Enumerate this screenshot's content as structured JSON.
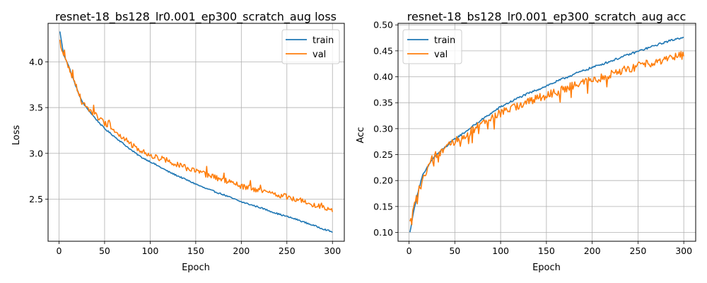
{
  "chart_data": [
    {
      "type": "line",
      "title": "resnet-18_bs128_lr0.001_ep300_scratch_aug loss",
      "xlabel": "Epoch",
      "ylabel": "Loss",
      "xlim": [
        -12,
        313
      ],
      "ylim": [
        2.04,
        4.42
      ],
      "xticks": [
        0,
        50,
        100,
        150,
        200,
        250,
        300
      ],
      "yticks": [
        2.5,
        3.0,
        3.5,
        4.0
      ],
      "ytick_labels": [
        "2.5",
        "3.0",
        "3.5",
        "4.0"
      ],
      "grid": true,
      "legend_position": "top-right",
      "series": [
        {
          "name": "train",
          "color": "#1f77b4",
          "x": [
            1,
            5,
            10,
            15,
            20,
            25,
            30,
            40,
            50,
            60,
            70,
            80,
            90,
            100,
            120,
            140,
            160,
            180,
            200,
            220,
            240,
            260,
            280,
            300
          ],
          "values": [
            4.33,
            4.08,
            3.97,
            3.83,
            3.69,
            3.57,
            3.5,
            3.38,
            3.27,
            3.19,
            3.11,
            3.03,
            2.96,
            2.91,
            2.8,
            2.71,
            2.62,
            2.55,
            2.47,
            2.41,
            2.34,
            2.28,
            2.21,
            2.14
          ],
          "noise": 0.008
        },
        {
          "name": "val",
          "color": "#ff7f0e",
          "x": [
            1,
            5,
            10,
            15,
            20,
            25,
            30,
            40,
            50,
            60,
            70,
            80,
            90,
            100,
            120,
            140,
            160,
            180,
            200,
            220,
            240,
            260,
            280,
            300
          ],
          "values": [
            4.17,
            4.08,
            3.96,
            3.82,
            3.68,
            3.56,
            3.51,
            3.42,
            3.33,
            3.25,
            3.17,
            3.09,
            3.03,
            2.98,
            2.92,
            2.84,
            2.77,
            2.71,
            2.64,
            2.59,
            2.55,
            2.5,
            2.44,
            2.39
          ],
          "noise": 0.03
        }
      ]
    },
    {
      "type": "line",
      "title": "resnet-18_bs128_lr0.001_ep300_scratch_aug acc",
      "xlabel": "Epoch",
      "ylabel": "Acc",
      "xlim": [
        -12,
        313
      ],
      "ylim": [
        0.083,
        0.503
      ],
      "xticks": [
        0,
        50,
        100,
        150,
        200,
        250,
        300
      ],
      "yticks": [
        0.1,
        0.15,
        0.2,
        0.25,
        0.3,
        0.35,
        0.4,
        0.45,
        0.5
      ],
      "ytick_labels": [
        "0.10",
        "0.15",
        "0.20",
        "0.25",
        "0.30",
        "0.35",
        "0.40",
        "0.45",
        "0.50"
      ],
      "grid": true,
      "legend_position": "top-left",
      "series": [
        {
          "name": "train",
          "color": "#1f77b4",
          "x": [
            1,
            5,
            10,
            15,
            20,
            25,
            30,
            40,
            50,
            60,
            70,
            80,
            90,
            100,
            120,
            140,
            160,
            180,
            200,
            220,
            240,
            260,
            280,
            300
          ],
          "values": [
            0.1,
            0.14,
            0.18,
            0.21,
            0.225,
            0.24,
            0.25,
            0.265,
            0.28,
            0.292,
            0.305,
            0.318,
            0.33,
            0.342,
            0.36,
            0.375,
            0.39,
            0.405,
            0.418,
            0.43,
            0.443,
            0.455,
            0.467,
            0.477
          ],
          "noise": 0.002
        },
        {
          "name": "val",
          "color": "#ff7f0e",
          "x": [
            1,
            5,
            10,
            15,
            20,
            25,
            30,
            40,
            50,
            60,
            70,
            80,
            90,
            100,
            120,
            140,
            160,
            180,
            200,
            220,
            240,
            260,
            280,
            300
          ],
          "values": [
            0.12,
            0.15,
            0.18,
            0.205,
            0.22,
            0.24,
            0.25,
            0.262,
            0.275,
            0.285,
            0.298,
            0.31,
            0.32,
            0.33,
            0.345,
            0.358,
            0.37,
            0.383,
            0.393,
            0.405,
            0.415,
            0.425,
            0.435,
            0.445
          ],
          "noise": 0.008
        }
      ]
    }
  ]
}
